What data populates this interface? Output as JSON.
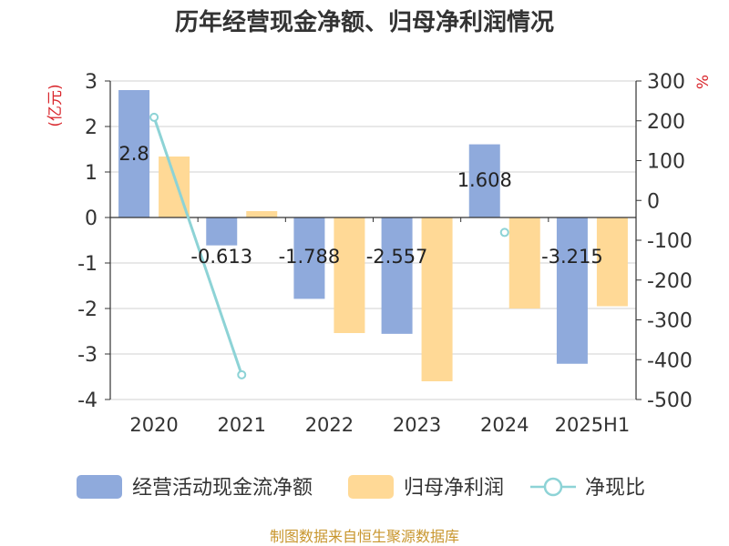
{
  "chart_data": {
    "type": "bar",
    "title": "历年经营现金净额、归母净利润情况",
    "categories": [
      "2020",
      "2021",
      "2022",
      "2023",
      "2024",
      "2025H1"
    ],
    "y_left_unit": "(亿元)",
    "y_right_unit": "%",
    "y_left_ticks": [
      "3",
      "2",
      "1",
      "0",
      "-1",
      "-2",
      "-3",
      "-4"
    ],
    "y_right_ticks": [
      "300",
      "200",
      "100",
      "0",
      "-100",
      "-200",
      "-300",
      "-400",
      "-500"
    ],
    "ylim_left": [
      -4,
      3
    ],
    "ylim_right": [
      -500,
      300
    ],
    "grid": true,
    "legend_position": "bottom",
    "series": [
      {
        "name": "经营活动现金流净额",
        "kind": "bar",
        "axis": "left",
        "values": [
          2.8,
          -0.613,
          -1.788,
          -2.557,
          1.608,
          -3.215
        ],
        "data_labels": [
          "2.8",
          "-0.613",
          "-1.788",
          "-2.557",
          "1.608",
          "-3.215"
        ]
      },
      {
        "name": "归母净利润",
        "kind": "bar",
        "axis": "left",
        "values": [
          1.34,
          0.14,
          -2.54,
          -3.6,
          -2.0,
          -1.95
        ]
      },
      {
        "name": "净现比",
        "kind": "line",
        "axis": "right",
        "values": [
          208.9,
          -437.9,
          null,
          null,
          -80.4,
          null
        ]
      }
    ]
  },
  "colors": {
    "cash_flow": "#8faadc",
    "net_profit": "#ffd996",
    "ratio": "#8dd3d6",
    "unit_text": "#d9262c",
    "source_text": "#c8962e"
  },
  "source": "制图数据来自恒生聚源数据库"
}
